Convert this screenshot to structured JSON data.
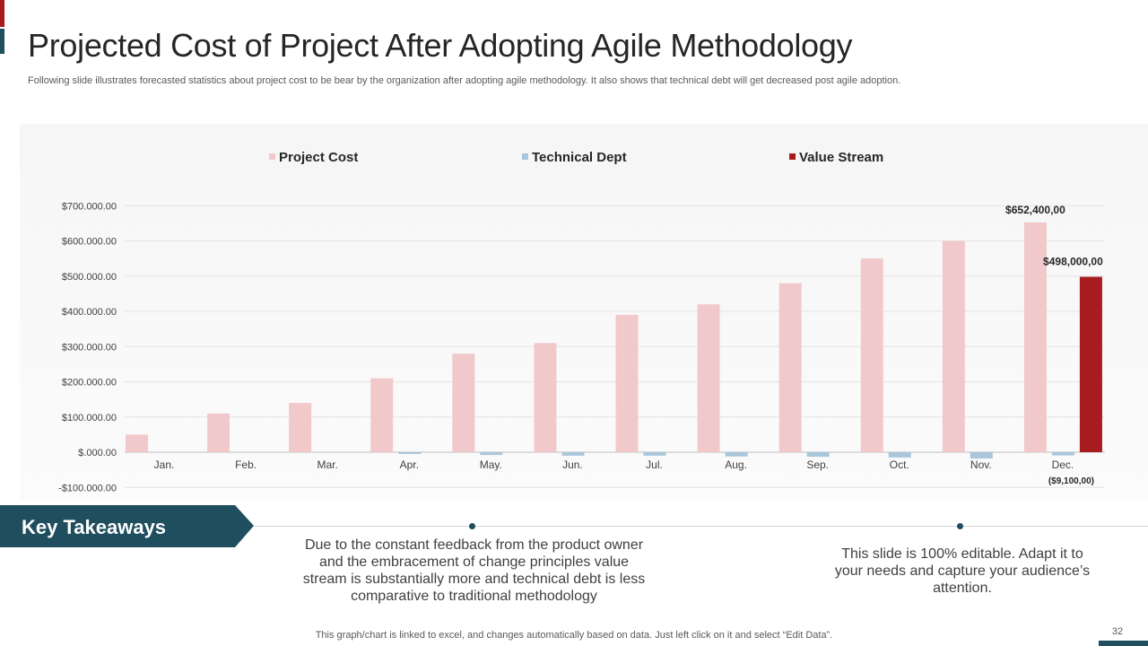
{
  "page": {
    "title": "Projected Cost of Project After Adopting Agile Methodology",
    "subtitle": "Following slide illustrates forecasted statistics about project cost to be bear by the organization after adopting agile methodology. It also shows that technical debt will get decreased post agile adoption.",
    "footer_note": "This graph/chart is linked to excel,  and changes automatically based on data. Just left click on it and select “Edit Data”.",
    "page_number": "32"
  },
  "takeaways": {
    "heading": "Key Takeaways",
    "items": [
      "Due to the constant feedback from the product owner and the embracement of change principles value stream is substantially more and technical debt is less comparative to traditional methodology",
      "This slide is 100% editable. Adapt it to your needs and capture your audience’s attention."
    ]
  },
  "colors": {
    "accent_red": "#a61c1f",
    "accent_teal": "#1f4e5f",
    "project_cost": "#f2c9ca",
    "technical_dept": "#a9c6db",
    "value_stream": "#a61c1f"
  },
  "chart_data": {
    "type": "bar",
    "categories": [
      "Jan.",
      "Feb.",
      "Mar.",
      "Apr.",
      "May.",
      "Jun.",
      "Jul.",
      "Aug.",
      "Sep.",
      "Oct.",
      "Nov.",
      "Dec."
    ],
    "series": [
      {
        "name": "Project Cost",
        "color": "#f2c9ca",
        "values": [
          50000,
          110000,
          140000,
          210000,
          280000,
          310000,
          390000,
          420000,
          480000,
          550000,
          600000,
          652400
        ]
      },
      {
        "name": "Technical Dept",
        "color": "#a9c6db",
        "values": [
          0,
          0,
          0,
          -5000,
          -8000,
          -10000,
          -10000,
          -12000,
          -13000,
          -15000,
          -18000,
          -9100
        ]
      },
      {
        "name": "Value Stream",
        "color": "#a61c1f",
        "values": [
          null,
          null,
          null,
          null,
          null,
          null,
          null,
          null,
          null,
          null,
          null,
          498000
        ]
      }
    ],
    "data_labels": [
      {
        "series": "Project Cost",
        "category": "Dec.",
        "text": "$652,400,00"
      },
      {
        "series": "Value Stream",
        "category": "Dec.",
        "text": "$498,000,00"
      },
      {
        "series": "Technical Dept",
        "category": "Dec.",
        "text": "($9,100,00)"
      }
    ],
    "yticks": [
      700000,
      600000,
      500000,
      400000,
      300000,
      200000,
      100000,
      0,
      -100000
    ],
    "ytick_labels": [
      "$700.000.00",
      "$600.000.00",
      "$500.000.00",
      "$400.000.00",
      "$300.000.00",
      "$200.000.00",
      "$100.000.00",
      "$.000.00",
      "-$100.000.00"
    ],
    "ylim": [
      -100000,
      700000
    ],
    "legend_position": "top",
    "grid": true,
    "title": "",
    "xlabel": "",
    "ylabel": ""
  }
}
